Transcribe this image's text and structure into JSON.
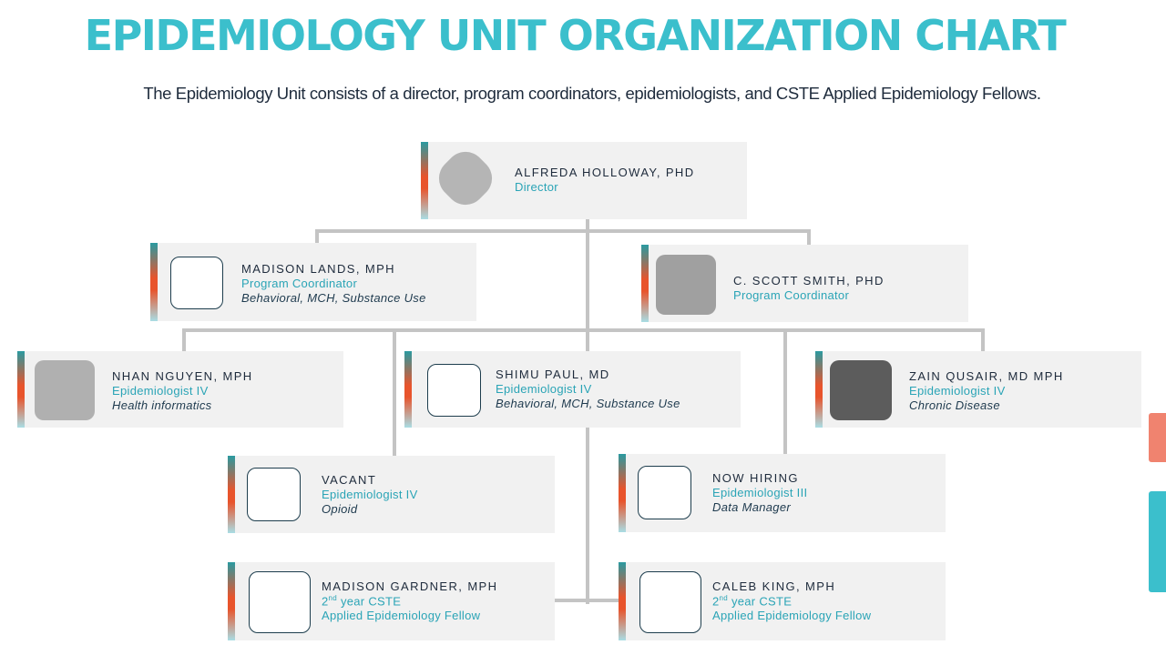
{
  "title": "EPIDEMIOLOGY UNIT ORGANIZATION CHART",
  "subtitle": "The Epidemiology Unit consists of a director, program coordinators, epidemiologists, and CSTE Applied Epidemiology Fellows.",
  "colors": {
    "title": "#3bbfcc",
    "role": "#2aa4b6",
    "box": "#f1f1f1",
    "accent_top": "#2a9aa0",
    "accent_mid": "#e8542c",
    "accent_bottom": "#a9dde4",
    "connector": "#c4c4c4",
    "tab_orange": "#f0836f",
    "tab_teal": "#3bbfcc"
  },
  "director": {
    "name": "ALFREDA HOLLOWAY, PHD",
    "role": "Director",
    "photo": "portrait-photo"
  },
  "coord_left": {
    "name": "MADISON LANDS, MPH",
    "role": "Program Coordinator",
    "area": "Behavioral, MCH, Substance Use",
    "photo": "empty-photo-frame"
  },
  "coord_right": {
    "name": "C. SCOTT SMITH, PHD",
    "role": "Program Coordinator",
    "photo": "portrait-photo"
  },
  "epi_nguyen": {
    "name": "NHAN NGUYEN, MPH",
    "role": "Epidemiologist IV",
    "area": "Health informatics",
    "photo": "portrait-photo"
  },
  "epi_paul": {
    "name": "SHIMU PAUL, MD",
    "role": "Epidemiologist IV",
    "area": "Behavioral, MCH, Substance Use",
    "photo": "empty-photo-frame"
  },
  "epi_qusair": {
    "name": "ZAIN QUSAIR, MD MPH",
    "role": "Epidemiologist IV",
    "area": "Chronic Disease",
    "photo": "portrait-photo"
  },
  "vacant": {
    "name": "VACANT",
    "role": "Epidemiologist IV",
    "area": "Opioid",
    "photo": "empty-photo-frame"
  },
  "hiring": {
    "name": "NOW HIRING",
    "role": "Epidemiologist III",
    "area": "Data Manager",
    "photo": "empty-photo-frame"
  },
  "fellow_gardner": {
    "name": "MADISON GARDNER, MPH",
    "role_num": "2",
    "role_sup": "nd",
    "role_rest": " year CSTE",
    "area": "Applied Epidemiology Fellow",
    "photo": "empty-photo-frame"
  },
  "fellow_king": {
    "name": "CALEB KING, MPH",
    "role_num": "2",
    "role_sup": "nd",
    "role_rest": " year CSTE",
    "area": "Applied Epidemiology Fellow",
    "photo": "empty-photo-frame"
  }
}
